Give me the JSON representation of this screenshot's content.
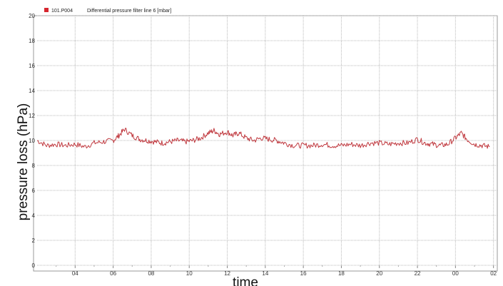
{
  "chart_data": {
    "type": "line",
    "ylabel": "pressure loss (hPa)",
    "xlabel": "time",
    "x_tick_labels": [
      "04",
      "06",
      "08",
      "10",
      "12",
      "14",
      "16",
      "18",
      "20",
      "22",
      "00",
      "02"
    ],
    "y_ticks": [
      0,
      2,
      4,
      6,
      8,
      10,
      12,
      14,
      16,
      18,
      20
    ],
    "ylim": [
      0,
      20
    ],
    "xlim_hours": [
      2.0,
      26.2
    ],
    "grid": true,
    "legend_position": "top-left",
    "series": [
      {
        "name": "Differential pressure filter line 6 [mbar]",
        "id": "101.P004",
        "color": "#c0393f",
        "x": [
          2.0,
          2.5,
          3.0,
          3.5,
          4.0,
          4.5,
          5.0,
          5.5,
          6.0,
          6.3,
          6.6,
          7.0,
          7.4,
          7.8,
          8.2,
          8.6,
          9.0,
          9.4,
          9.8,
          10.2,
          10.6,
          11.0,
          11.3,
          11.6,
          12.0,
          12.3,
          12.6,
          13.0,
          13.4,
          13.8,
          14.2,
          14.6,
          15.0,
          15.5,
          16.0,
          16.5,
          17.0,
          17.5,
          18.0,
          18.5,
          19.0,
          19.5,
          20.0,
          20.5,
          21.0,
          21.5,
          22.0,
          22.4,
          22.8,
          23.2,
          23.6,
          24.0,
          24.3,
          24.6,
          25.0,
          25.4,
          25.8
        ],
        "values": [
          10.0,
          9.6,
          9.7,
          9.6,
          9.7,
          9.5,
          9.8,
          9.9,
          10.0,
          10.4,
          10.9,
          10.4,
          10.1,
          10.0,
          9.9,
          9.8,
          9.9,
          10.0,
          9.9,
          10.0,
          10.2,
          10.6,
          10.8,
          10.5,
          10.7,
          10.4,
          10.6,
          10.2,
          10.0,
          10.2,
          10.1,
          10.0,
          9.8,
          9.6,
          9.6,
          9.6,
          9.7,
          9.6,
          9.6,
          9.7,
          9.6,
          9.8,
          9.8,
          9.7,
          9.8,
          9.8,
          10.1,
          9.8,
          9.7,
          9.6,
          9.7,
          10.2,
          10.6,
          10.1,
          9.7,
          9.6,
          9.5
        ]
      }
    ]
  }
}
